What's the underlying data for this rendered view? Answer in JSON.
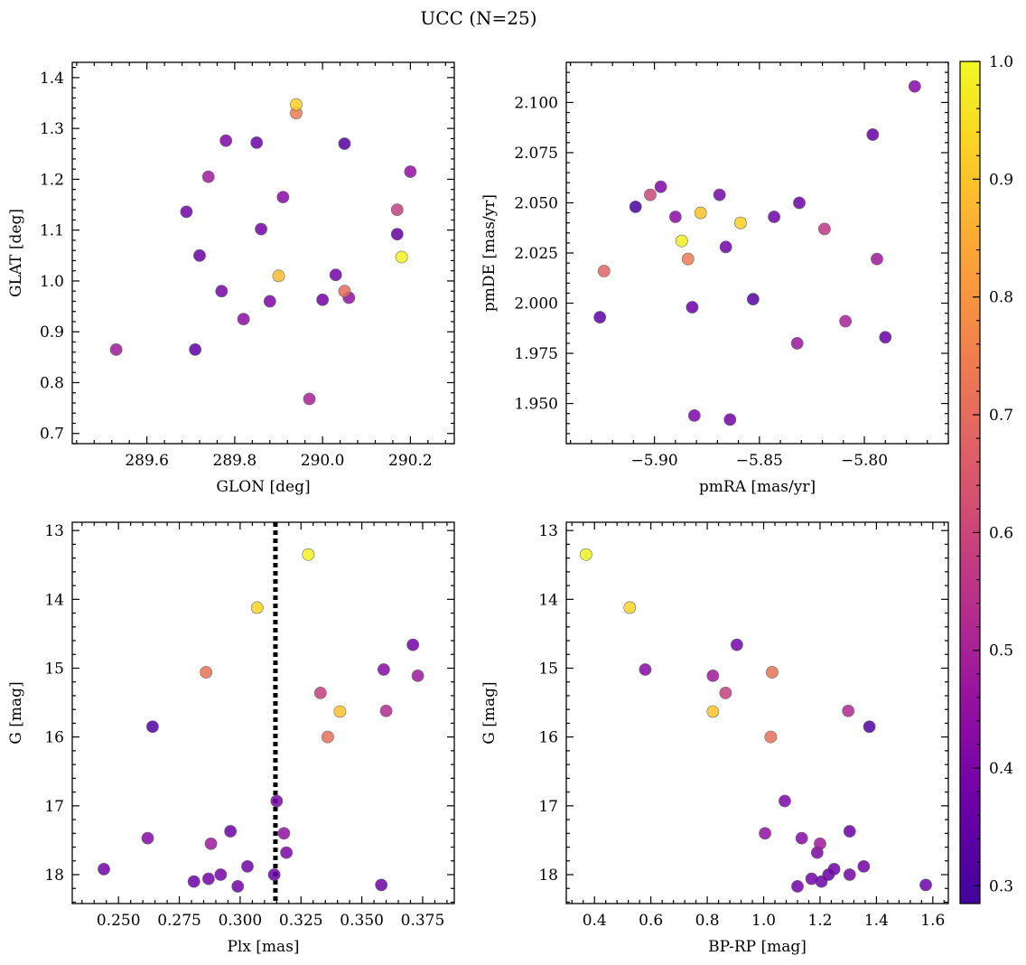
{
  "figure": {
    "title": "UCC (N=25)"
  },
  "colorbar": {
    "min": 0.285,
    "max": 1.0,
    "ticks": [
      0.3,
      0.4,
      0.5,
      0.6,
      0.7,
      0.8,
      0.9,
      1.0
    ],
    "tick_labels": [
      "0.3",
      "0.4",
      "0.5",
      "0.6",
      "0.7",
      "0.8",
      "0.9",
      "1.0"
    ],
    "colormap": "plasma"
  },
  "chart_data": [
    {
      "type": "scatter",
      "id": "glon-glat",
      "xlabel": "GLON [deg]",
      "ylabel": "GLAT [deg]",
      "xlim": [
        289.43,
        290.3
      ],
      "ylim": [
        0.68,
        1.43
      ],
      "xticks": [
        289.6,
        289.8,
        290.0,
        290.2
      ],
      "xtick_labels": [
        "289.6",
        "289.8",
        "290.0",
        "290.2"
      ],
      "yticks": [
        0.7,
        0.8,
        0.9,
        1.0,
        1.1,
        1.2,
        1.3,
        1.4
      ],
      "ytick_labels": [
        "0.7",
        "0.8",
        "0.9",
        "1.0",
        "1.1",
        "1.2",
        "1.3",
        "1.4"
      ],
      "y_inverted": false,
      "points": [
        {
          "x": 289.53,
          "y": 0.865,
          "c": 0.48
        },
        {
          "x": 289.69,
          "y": 1.136,
          "c": 0.38
        },
        {
          "x": 289.71,
          "y": 0.865,
          "c": 0.34
        },
        {
          "x": 289.72,
          "y": 1.05,
          "c": 0.36
        },
        {
          "x": 289.74,
          "y": 1.205,
          "c": 0.48
        },
        {
          "x": 289.77,
          "y": 0.98,
          "c": 0.39
        },
        {
          "x": 289.78,
          "y": 1.276,
          "c": 0.41
        },
        {
          "x": 289.82,
          "y": 0.925,
          "c": 0.44
        },
        {
          "x": 289.85,
          "y": 1.272,
          "c": 0.37
        },
        {
          "x": 289.86,
          "y": 1.102,
          "c": 0.38
        },
        {
          "x": 289.88,
          "y": 0.96,
          "c": 0.4
        },
        {
          "x": 289.9,
          "y": 1.01,
          "c": 0.88
        },
        {
          "x": 289.91,
          "y": 1.165,
          "c": 0.42
        },
        {
          "x": 289.94,
          "y": 1.33,
          "c": 0.74
        },
        {
          "x": 289.94,
          "y": 1.347,
          "c": 0.92
        },
        {
          "x": 289.97,
          "y": 0.768,
          "c": 0.5
        },
        {
          "x": 290.0,
          "y": 0.963,
          "c": 0.38
        },
        {
          "x": 290.03,
          "y": 1.012,
          "c": 0.38
        },
        {
          "x": 290.05,
          "y": 1.27,
          "c": 0.33
        },
        {
          "x": 290.05,
          "y": 0.98,
          "c": 0.7
        },
        {
          "x": 290.06,
          "y": 0.967,
          "c": 0.45
        },
        {
          "x": 290.17,
          "y": 1.14,
          "c": 0.58
        },
        {
          "x": 290.17,
          "y": 1.092,
          "c": 0.35
        },
        {
          "x": 290.18,
          "y": 1.047,
          "c": 0.99
        },
        {
          "x": 290.2,
          "y": 1.215,
          "c": 0.45
        }
      ]
    },
    {
      "type": "scatter",
      "id": "pmra-pmde",
      "xlabel": "pmRA [mas/yr]",
      "ylabel": "pmDE [mas/yr]",
      "xlim": [
        -5.942,
        -5.76
      ],
      "ylim": [
        1.93,
        2.12
      ],
      "xticks": [
        -5.9,
        -5.85,
        -5.8
      ],
      "xtick_labels": [
        "−5.90",
        "−5.85",
        "−5.80"
      ],
      "yticks": [
        1.95,
        1.975,
        2.0,
        2.025,
        2.05,
        2.075,
        2.1
      ],
      "ytick_labels": [
        "1.950",
        "1.975",
        "2.000",
        "2.025",
        "2.050",
        "2.075",
        "2.100"
      ],
      "y_inverted": false,
      "points": [
        {
          "x": -5.926,
          "y": 1.993,
          "c": 0.34
        },
        {
          "x": -5.924,
          "y": 2.016,
          "c": 0.68
        },
        {
          "x": -5.909,
          "y": 2.048,
          "c": 0.3
        },
        {
          "x": -5.902,
          "y": 2.054,
          "c": 0.6
        },
        {
          "x": -5.897,
          "y": 2.058,
          "c": 0.41
        },
        {
          "x": -5.89,
          "y": 2.043,
          "c": 0.44
        },
        {
          "x": -5.887,
          "y": 2.031,
          "c": 0.98
        },
        {
          "x": -5.884,
          "y": 2.022,
          "c": 0.74
        },
        {
          "x": -5.882,
          "y": 1.998,
          "c": 0.36
        },
        {
          "x": -5.881,
          "y": 1.944,
          "c": 0.4
        },
        {
          "x": -5.878,
          "y": 2.045,
          "c": 0.9
        },
        {
          "x": -5.869,
          "y": 2.054,
          "c": 0.39
        },
        {
          "x": -5.866,
          "y": 2.028,
          "c": 0.38
        },
        {
          "x": -5.864,
          "y": 1.942,
          "c": 0.38
        },
        {
          "x": -5.859,
          "y": 2.04,
          "c": 0.92
        },
        {
          "x": -5.853,
          "y": 2.002,
          "c": 0.33
        },
        {
          "x": -5.843,
          "y": 2.043,
          "c": 0.38
        },
        {
          "x": -5.832,
          "y": 1.98,
          "c": 0.47
        },
        {
          "x": -5.831,
          "y": 2.05,
          "c": 0.37
        },
        {
          "x": -5.819,
          "y": 2.037,
          "c": 0.56
        },
        {
          "x": -5.809,
          "y": 1.991,
          "c": 0.5
        },
        {
          "x": -5.796,
          "y": 2.084,
          "c": 0.36
        },
        {
          "x": -5.794,
          "y": 2.022,
          "c": 0.48
        },
        {
          "x": -5.79,
          "y": 1.983,
          "c": 0.36
        },
        {
          "x": -5.776,
          "y": 2.108,
          "c": 0.42
        }
      ]
    },
    {
      "type": "scatter",
      "id": "plx-g",
      "xlabel": "Plx [mas]",
      "ylabel": "G [mag]",
      "xlim": [
        0.231,
        0.388
      ],
      "ylim": [
        12.88,
        18.42
      ],
      "xticks": [
        0.25,
        0.275,
        0.3,
        0.325,
        0.35,
        0.375
      ],
      "xtick_labels": [
        "0.250",
        "0.275",
        "0.300",
        "0.325",
        "0.350",
        "0.375"
      ],
      "yticks": [
        13,
        14,
        15,
        16,
        17,
        18
      ],
      "ytick_labels": [
        "13",
        "14",
        "15",
        "16",
        "17",
        "18"
      ],
      "y_inverted": true,
      "vline": {
        "x": 0.3145,
        "style": "dotted"
      },
      "points": [
        {
          "x": 0.244,
          "y": 17.92,
          "c": 0.38
        },
        {
          "x": 0.262,
          "y": 17.47,
          "c": 0.42
        },
        {
          "x": 0.264,
          "y": 15.85,
          "c": 0.32
        },
        {
          "x": 0.281,
          "y": 18.1,
          "c": 0.37
        },
        {
          "x": 0.286,
          "y": 15.06,
          "c": 0.72
        },
        {
          "x": 0.287,
          "y": 18.06,
          "c": 0.38
        },
        {
          "x": 0.288,
          "y": 17.55,
          "c": 0.48
        },
        {
          "x": 0.292,
          "y": 18.0,
          "c": 0.39
        },
        {
          "x": 0.296,
          "y": 17.37,
          "c": 0.37
        },
        {
          "x": 0.299,
          "y": 18.17,
          "c": 0.38
        },
        {
          "x": 0.303,
          "y": 17.88,
          "c": 0.38
        },
        {
          "x": 0.307,
          "y": 14.12,
          "c": 0.93
        },
        {
          "x": 0.314,
          "y": 18.0,
          "c": 0.36
        },
        {
          "x": 0.315,
          "y": 16.93,
          "c": 0.4
        },
        {
          "x": 0.318,
          "y": 17.4,
          "c": 0.45
        },
        {
          "x": 0.319,
          "y": 17.68,
          "c": 0.4
        },
        {
          "x": 0.328,
          "y": 13.35,
          "c": 0.99
        },
        {
          "x": 0.333,
          "y": 15.36,
          "c": 0.58
        },
        {
          "x": 0.336,
          "y": 16.0,
          "c": 0.71
        },
        {
          "x": 0.341,
          "y": 15.63,
          "c": 0.9
        },
        {
          "x": 0.358,
          "y": 18.15,
          "c": 0.37
        },
        {
          "x": 0.359,
          "y": 15.02,
          "c": 0.42
        },
        {
          "x": 0.36,
          "y": 15.62,
          "c": 0.52
        },
        {
          "x": 0.371,
          "y": 14.66,
          "c": 0.38
        },
        {
          "x": 0.373,
          "y": 15.11,
          "c": 0.48
        }
      ]
    },
    {
      "type": "scatter",
      "id": "bprp-g",
      "xlabel": "BP-RP [mag]",
      "ylabel": "G [mag]",
      "xlim": [
        0.3,
        1.655
      ],
      "ylim": [
        12.88,
        18.42
      ],
      "xticks": [
        0.4,
        0.6,
        0.8,
        1.0,
        1.2,
        1.4,
        1.6
      ],
      "xtick_labels": [
        "0.4",
        "0.6",
        "0.8",
        "1.0",
        "1.2",
        "1.4",
        "1.6"
      ],
      "yticks": [
        13,
        14,
        15,
        16,
        17,
        18
      ],
      "ytick_labels": [
        "13",
        "14",
        "15",
        "16",
        "17",
        "18"
      ],
      "y_inverted": true,
      "points": [
        {
          "x": 0.37,
          "y": 13.35,
          "c": 0.99
        },
        {
          "x": 0.525,
          "y": 14.12,
          "c": 0.93
        },
        {
          "x": 0.58,
          "y": 15.02,
          "c": 0.42
        },
        {
          "x": 0.82,
          "y": 15.11,
          "c": 0.48
        },
        {
          "x": 0.82,
          "y": 15.63,
          "c": 0.9
        },
        {
          "x": 0.865,
          "y": 15.36,
          "c": 0.58
        },
        {
          "x": 0.905,
          "y": 14.66,
          "c": 0.38
        },
        {
          "x": 1.005,
          "y": 17.4,
          "c": 0.45
        },
        {
          "x": 1.025,
          "y": 16.0,
          "c": 0.71
        },
        {
          "x": 1.03,
          "y": 15.06,
          "c": 0.72
        },
        {
          "x": 1.075,
          "y": 16.93,
          "c": 0.4
        },
        {
          "x": 1.12,
          "y": 18.17,
          "c": 0.38
        },
        {
          "x": 1.135,
          "y": 17.47,
          "c": 0.42
        },
        {
          "x": 1.17,
          "y": 18.06,
          "c": 0.38
        },
        {
          "x": 1.19,
          "y": 17.68,
          "c": 0.4
        },
        {
          "x": 1.2,
          "y": 17.55,
          "c": 0.48
        },
        {
          "x": 1.205,
          "y": 18.1,
          "c": 0.37
        },
        {
          "x": 1.23,
          "y": 18.0,
          "c": 0.36
        },
        {
          "x": 1.25,
          "y": 17.92,
          "c": 0.38
        },
        {
          "x": 1.3,
          "y": 15.62,
          "c": 0.52
        },
        {
          "x": 1.305,
          "y": 18.0,
          "c": 0.39
        },
        {
          "x": 1.305,
          "y": 17.37,
          "c": 0.37
        },
        {
          "x": 1.355,
          "y": 17.88,
          "c": 0.38
        },
        {
          "x": 1.375,
          "y": 15.85,
          "c": 0.32
        },
        {
          "x": 1.575,
          "y": 18.15,
          "c": 0.37
        }
      ]
    }
  ]
}
